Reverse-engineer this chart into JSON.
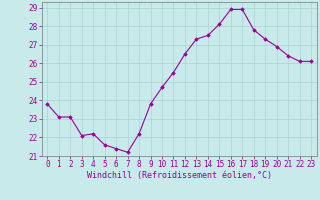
{
  "x": [
    0,
    1,
    2,
    3,
    4,
    5,
    6,
    7,
    8,
    9,
    10,
    11,
    12,
    13,
    14,
    15,
    16,
    17,
    18,
    19,
    20,
    21,
    22,
    23
  ],
  "y": [
    23.8,
    23.1,
    23.1,
    22.1,
    22.2,
    21.6,
    21.4,
    21.2,
    22.2,
    23.8,
    24.7,
    25.5,
    26.5,
    27.3,
    27.5,
    28.1,
    28.9,
    28.9,
    27.8,
    27.3,
    26.9,
    26.4,
    26.1,
    26.1
  ],
  "line_color": "#990099",
  "marker": "D",
  "marker_size": 1.8,
  "bg_color": "#c8eaea",
  "grid_color": "#aad4d4",
  "tick_color": "#990099",
  "label_color": "#990099",
  "xlabel": "Windchill (Refroidissement éolien,°C)",
  "ylim": [
    21,
    29.3
  ],
  "yticks": [
    21,
    22,
    23,
    24,
    25,
    26,
    27,
    28,
    29
  ],
  "xticks": [
    0,
    1,
    2,
    3,
    4,
    5,
    6,
    7,
    8,
    9,
    10,
    11,
    12,
    13,
    14,
    15,
    16,
    17,
    18,
    19,
    20,
    21,
    22,
    23
  ],
  "tick_fontsize": 5.5,
  "xlabel_fontsize": 6.0,
  "linewidth": 0.8
}
